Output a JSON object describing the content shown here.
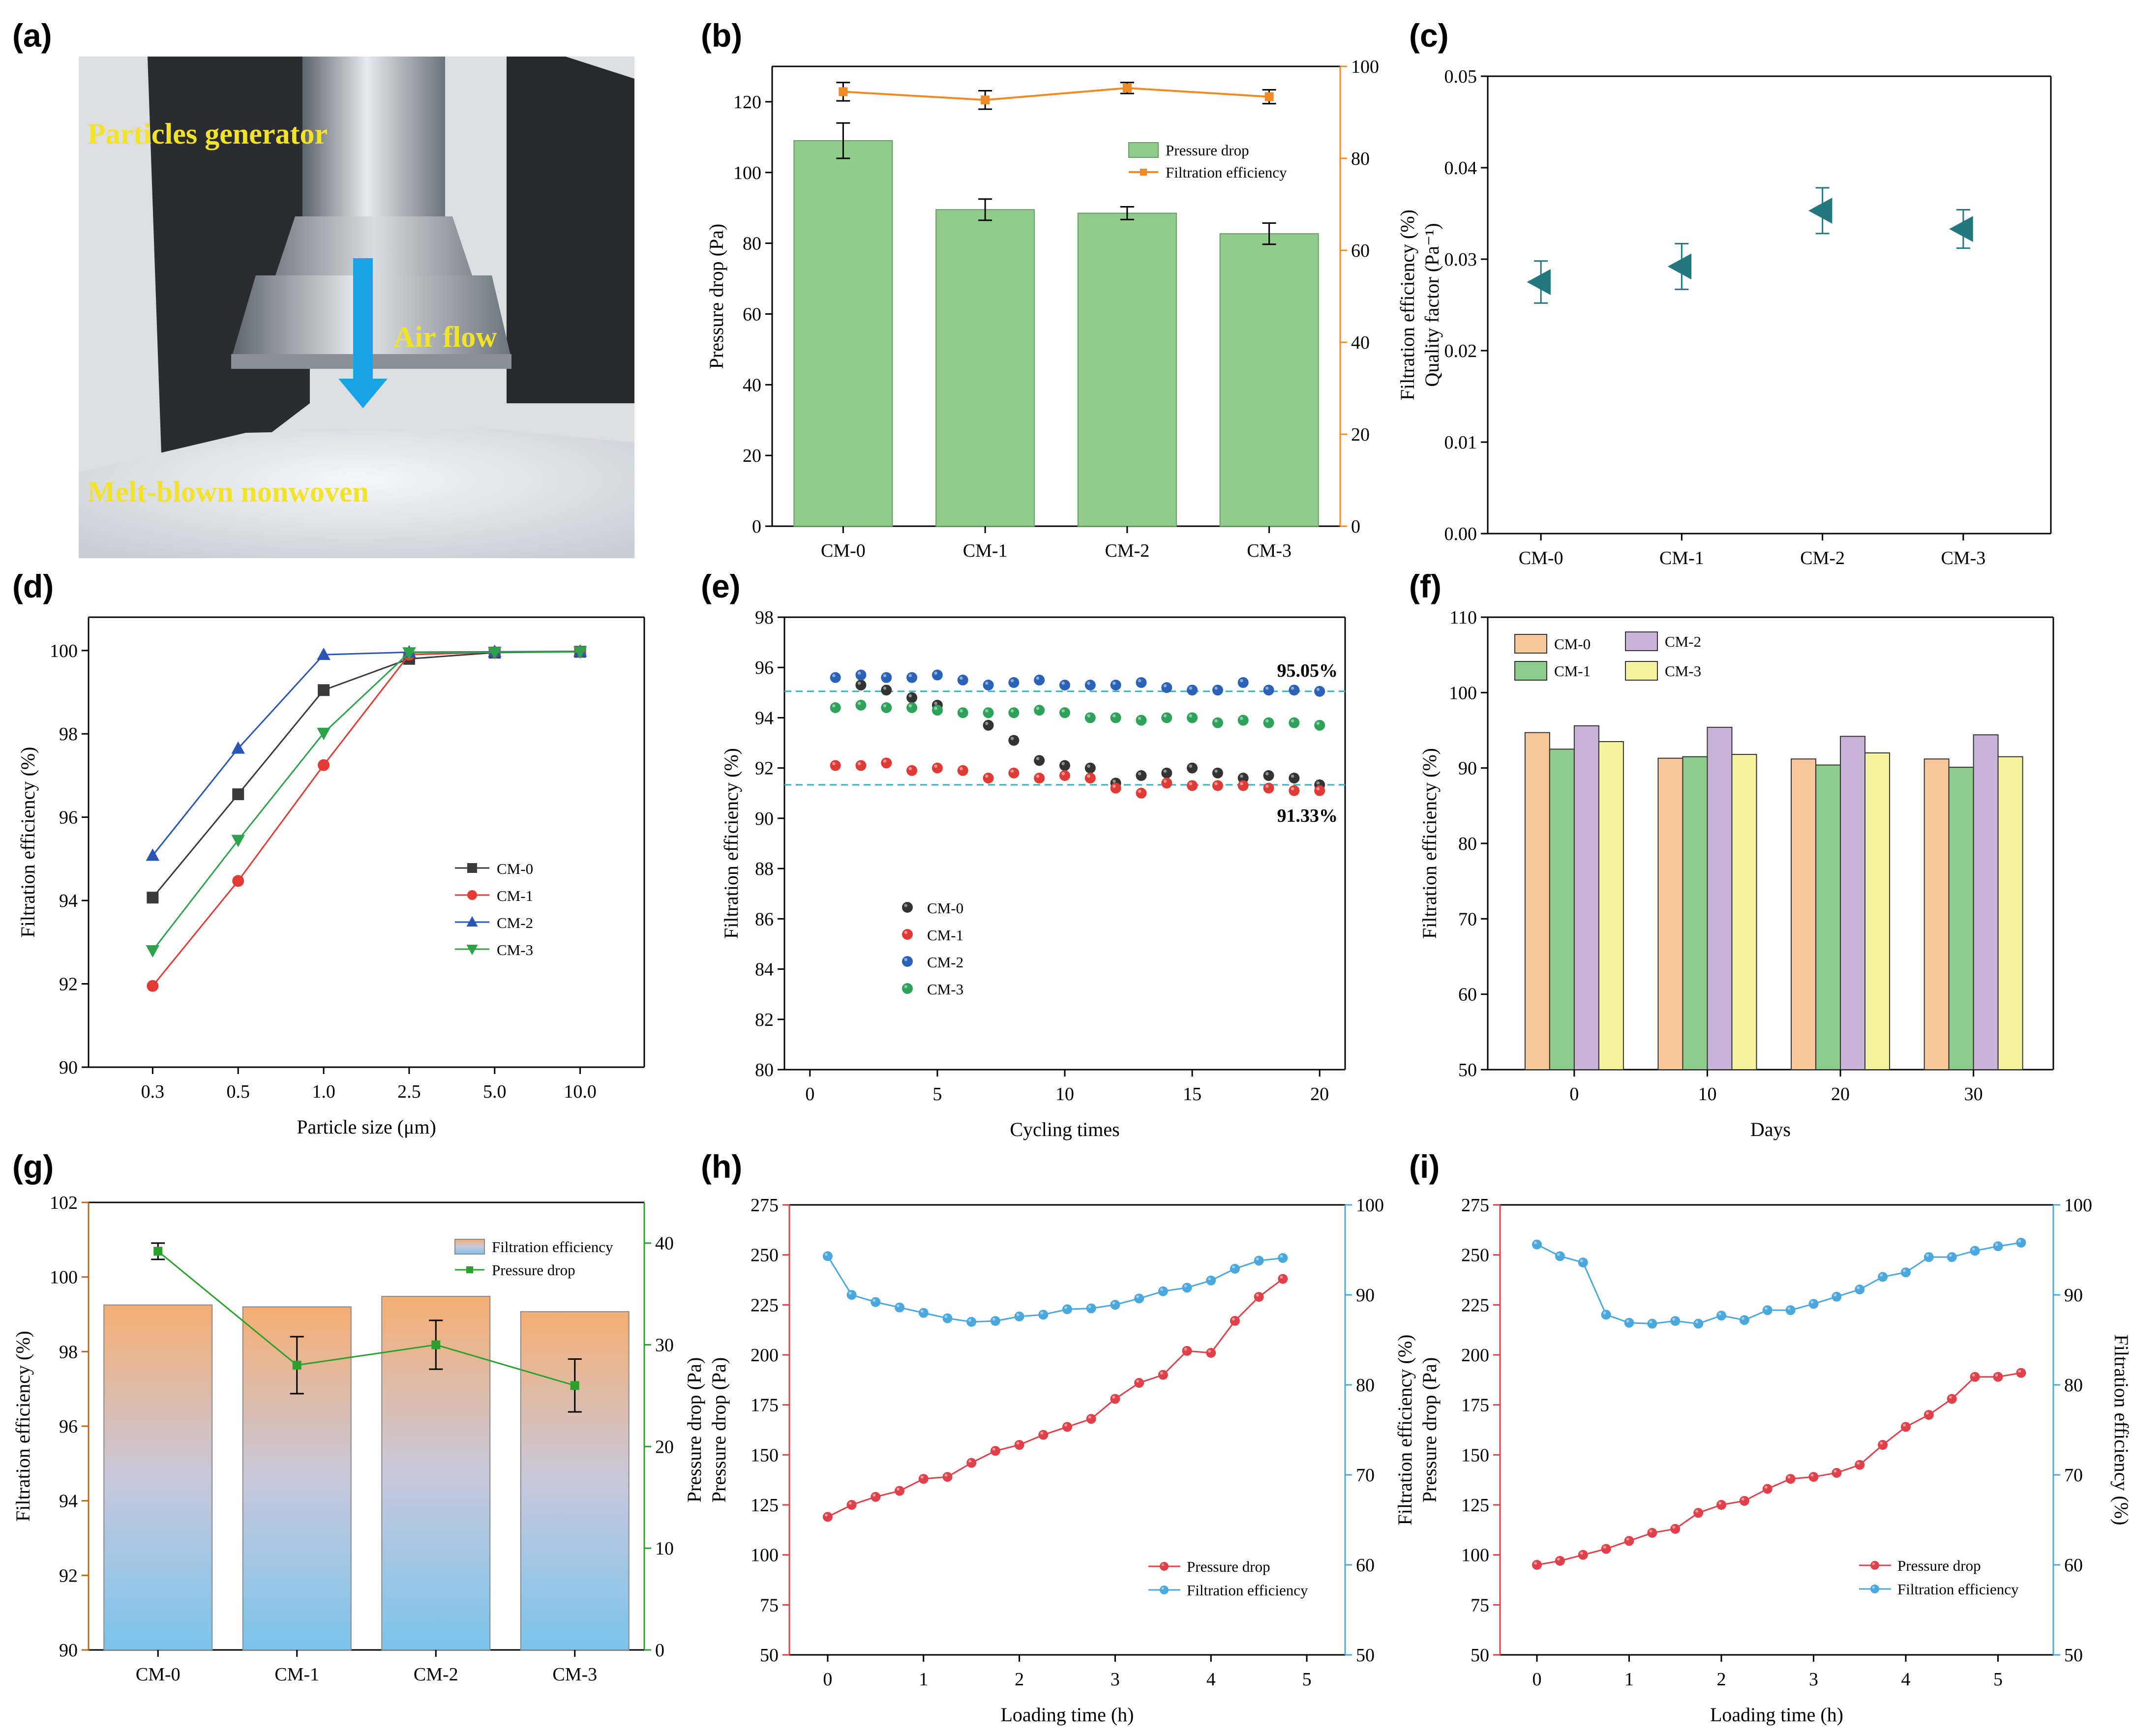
{
  "panel_labels": [
    "(a)",
    "(b)",
    "(c)",
    "(d)",
    "(e)",
    "(f)",
    "(g)",
    "(h)",
    "(i)"
  ],
  "photo": {
    "labels": [
      "Particles generator",
      "Air flow",
      "Melt-blown nonwoven"
    ],
    "colors": {
      "text": "#f2e22a",
      "arrow": "#1aa2e6"
    }
  },
  "chart_data": [
    {
      "id": "b",
      "type": "bar",
      "categories": [
        "CM-0",
        "CM-1",
        "CM-2",
        "CM-3"
      ],
      "ylabel": "Pressure drop (Pa)",
      "y2label": "",
      "ylim": [
        0,
        130
      ],
      "y2lim": [
        0,
        100
      ],
      "yticks": [
        0,
        20,
        40,
        60,
        80,
        100,
        120
      ],
      "y2ticks": [
        0,
        20,
        40,
        60,
        80,
        100
      ],
      "legend_position": "upper-right",
      "series": [
        {
          "name": "Pressure drop",
          "kind": "bar",
          "axis": "left",
          "color": "#90cc8c",
          "values": [
            109,
            89.5,
            88.5,
            82.7
          ],
          "errors": [
            5,
            3,
            1.8,
            3
          ]
        },
        {
          "name": "Filtration efficiency",
          "kind": "line",
          "axis": "right",
          "color": "#f08a24",
          "values": [
            94.5,
            92.7,
            95.3,
            93.4
          ],
          "errors": [
            2,
            2,
            1.2,
            1.5
          ]
        }
      ]
    },
    {
      "id": "c",
      "type": "scatter",
      "categories": [
        "CM-0",
        "CM-1",
        "CM-2",
        "CM-3"
      ],
      "ylabel": [
        "Filtration efficiency (%)",
        "Quality factor (Pa⁻¹)"
      ],
      "ylim": [
        0,
        0.05
      ],
      "yticks": [
        "0.00",
        "0.01",
        "0.02",
        "0.03",
        "0.04",
        "0.05"
      ],
      "series": [
        {
          "name": "",
          "color": "#22787e",
          "values": [
            0.0275,
            0.0292,
            0.0353,
            0.0333
          ],
          "errors": [
            0.0023,
            0.0025,
            0.0025,
            0.0021
          ]
        }
      ]
    },
    {
      "id": "d",
      "type": "line",
      "categories": [
        "0.3",
        "0.5",
        "1.0",
        "2.5",
        "5.0",
        "10.0"
      ],
      "xlabel": "Particle size (μm)",
      "ylabel": "Filtration efficiency (%)",
      "ylim": [
        90,
        100.8
      ],
      "yticks": [
        90,
        92,
        94,
        96,
        98,
        100
      ],
      "legend_position": "center-right",
      "series": [
        {
          "name": "CM-0",
          "marker": "square",
          "color": "#3a3a3a",
          "values": [
            94.07,
            96.55,
            99.05,
            99.8,
            99.95,
            99.97
          ]
        },
        {
          "name": "CM-1",
          "marker": "circle",
          "color": "#e43a36",
          "values": [
            91.95,
            94.47,
            97.25,
            99.9,
            99.96,
            99.97
          ]
        },
        {
          "name": "CM-2",
          "marker": "triangle-up",
          "color": "#2a55b5",
          "values": [
            95.08,
            97.65,
            99.9,
            99.96,
            99.97,
            99.98
          ]
        },
        {
          "name": "CM-3",
          "marker": "triangle-down",
          "color": "#2ca24a",
          "values": [
            92.8,
            95.45,
            98.02,
            99.95,
            99.96,
            99.97
          ]
        }
      ]
    },
    {
      "id": "e",
      "type": "scatter",
      "xlabel": "Cycling times",
      "ylabel": "Filtration efficiency (%)",
      "xlim": [
        -1,
        21
      ],
      "ylim": [
        80,
        98
      ],
      "xticks": [
        0,
        5,
        10,
        15,
        20
      ],
      "yticks": [
        80,
        82,
        84,
        86,
        88,
        90,
        92,
        94,
        96,
        98
      ],
      "x": [
        1,
        2,
        3,
        4,
        5,
        6,
        7,
        8,
        9,
        10,
        11,
        12,
        13,
        14,
        15,
        16,
        17,
        18,
        19,
        20
      ],
      "reference_lines": [
        {
          "value": 95.05,
          "label": "95.05%"
        },
        {
          "value": 91.33,
          "label": "91.33%"
        }
      ],
      "legend_position": "lower-left",
      "series": [
        {
          "name": "CM-0",
          "color": "#333333",
          "values": [
            null,
            95.3,
            95.1,
            94.8,
            94.5,
            null,
            93.7,
            93.1,
            92.3,
            92.1,
            92.0,
            91.4,
            91.7,
            91.8,
            92.0,
            91.8,
            91.6,
            91.7,
            91.6,
            91.33
          ]
        },
        {
          "name": "CM-1",
          "color": "#e03a36",
          "values": [
            92.1,
            92.1,
            92.2,
            91.9,
            92.0,
            91.9,
            91.6,
            91.8,
            91.6,
            91.7,
            91.6,
            91.2,
            91.0,
            91.4,
            91.3,
            91.3,
            91.3,
            91.2,
            91.1,
            91.1
          ]
        },
        {
          "name": "CM-2",
          "color": "#2a62b8",
          "values": [
            95.6,
            95.7,
            95.6,
            95.6,
            95.7,
            95.5,
            95.3,
            95.4,
            95.5,
            95.3,
            95.3,
            95.3,
            95.4,
            95.2,
            95.1,
            95.1,
            95.4,
            95.1,
            95.1,
            95.05
          ]
        },
        {
          "name": "CM-3",
          "color": "#2ea25a",
          "values": [
            94.4,
            94.5,
            94.4,
            94.4,
            94.3,
            94.2,
            94.2,
            94.2,
            94.3,
            94.2,
            94.0,
            94.0,
            93.9,
            94.0,
            94.0,
            93.8,
            93.9,
            93.8,
            93.8,
            93.7
          ]
        }
      ]
    },
    {
      "id": "f",
      "type": "bar",
      "categories": [
        "0",
        "10",
        "20",
        "30"
      ],
      "xlabel": "Days",
      "ylabel": "Filtration efficiency (%)",
      "ylim": [
        50,
        110
      ],
      "yticks": [
        50,
        60,
        70,
        80,
        90,
        100,
        110
      ],
      "legend_position": "top-left",
      "series": [
        {
          "name": "CM-0",
          "color": "#f8c79a",
          "values": [
            94.7,
            91.3,
            91.2,
            91.2
          ]
        },
        {
          "name": "CM-1",
          "color": "#8dcc8c",
          "values": [
            92.5,
            91.5,
            90.4,
            90.1
          ]
        },
        {
          "name": "CM-2",
          "color": "#c9b3d8",
          "values": [
            95.6,
            95.4,
            94.2,
            94.4
          ]
        },
        {
          "name": "CM-3",
          "color": "#f5f2a0",
          "values": [
            93.5,
            91.8,
            92.0,
            91.5
          ]
        }
      ]
    },
    {
      "id": "g",
      "type": "bar",
      "categories": [
        "CM-0",
        "CM-1",
        "CM-2",
        "CM-3"
      ],
      "ylabel": "Filtration efficiency (%)",
      "y2label": "",
      "ylim": [
        90,
        102
      ],
      "y2lim": [
        0,
        44
      ],
      "yticks": [
        90,
        92,
        94,
        96,
        98,
        100,
        102
      ],
      "y2ticks": [
        0,
        10,
        20,
        30,
        40
      ],
      "legend_position": "upper-right",
      "series": [
        {
          "name": "Filtration efficiency",
          "kind": "bar",
          "axis": "left",
          "gradient": [
            "#f5ae72",
            "#c8c8dc",
            "#7ac4ec"
          ],
          "values": [
            99.25,
            99.2,
            99.48,
            99.07
          ]
        },
        {
          "name": "Pressure drop",
          "kind": "line",
          "axis": "right",
          "color": "#2ca02c",
          "values": [
            39.2,
            28.0,
            30.0,
            26.0
          ],
          "errors": [
            0.8,
            2.8,
            2.4,
            2.6
          ]
        }
      ]
    },
    {
      "id": "h",
      "type": "line",
      "xlabel": "Loading time (h)",
      "ylabel": [
        "Pressure drop (Pa)",
        "Pressure drop (Pa)"
      ],
      "y2label": "",
      "xlim": [
        -0.4,
        5.4
      ],
      "ylim": [
        50,
        275
      ],
      "y2lim": [
        50,
        100
      ],
      "xticks": [
        0,
        1,
        2,
        3,
        4,
        5
      ],
      "yticks": [
        50,
        75,
        100,
        125,
        150,
        175,
        200,
        225,
        250,
        275
      ],
      "y2ticks": [
        50,
        60,
        70,
        80,
        90,
        100
      ],
      "legend_position": "lower-right",
      "series": [
        {
          "name": "Pressure drop",
          "axis": "left",
          "color": "#e0404a",
          "x": [
            0,
            0.25,
            0.5,
            0.75,
            1,
            1.25,
            1.5,
            1.75,
            2,
            2.25,
            2.5,
            2.75,
            3,
            3.25,
            3.5,
            3.75,
            4,
            4.25,
            4.5,
            4.75
          ],
          "values": [
            119,
            125,
            129,
            132,
            138,
            139,
            146,
            152,
            155,
            160,
            164,
            168,
            178,
            186,
            190,
            202,
            201,
            217,
            229,
            238
          ]
        },
        {
          "name": "Filtration efficiency",
          "axis": "right",
          "color": "#4aa8dc",
          "x": [
            0,
            0.25,
            0.5,
            0.75,
            1,
            1.25,
            1.5,
            1.75,
            2,
            2.25,
            2.5,
            2.75,
            3,
            3.25,
            3.5,
            3.75,
            4,
            4.25,
            4.5,
            4.75
          ],
          "values": [
            94.3,
            90.0,
            89.2,
            88.6,
            88.0,
            87.4,
            87.0,
            87.1,
            87.6,
            87.8,
            88.4,
            88.5,
            88.9,
            89.6,
            90.4,
            90.8,
            91.6,
            92.9,
            93.8,
            94.1
          ]
        }
      ]
    },
    {
      "id": "i",
      "type": "line",
      "xlabel": "Loading time (h)",
      "ylabel": [
        "Filtration efficiency (%)",
        "Pressure drop (Pa)"
      ],
      "y2label": "Filtration efficiency (%)",
      "xlim": [
        -0.4,
        5.6
      ],
      "ylim": [
        50,
        275
      ],
      "y2lim": [
        50,
        100
      ],
      "xticks": [
        0,
        1,
        2,
        3,
        4,
        5
      ],
      "yticks": [
        50,
        75,
        100,
        125,
        150,
        175,
        200,
        225,
        250,
        275
      ],
      "y2ticks": [
        50,
        60,
        70,
        80,
        90,
        100
      ],
      "legend_position": "lower-right",
      "series": [
        {
          "name": "Pressure drop",
          "axis": "left",
          "color": "#e0404a",
          "x": [
            0,
            0.25,
            0.5,
            0.75,
            1,
            1.25,
            1.5,
            1.75,
            2,
            2.25,
            2.5,
            2.75,
            3,
            3.25,
            3.5,
            3.75,
            4,
            4.25,
            4.5,
            4.75,
            5,
            5.25
          ],
          "values": [
            95,
            97,
            100,
            103,
            107,
            111,
            113,
            121,
            125,
            127,
            133,
            138,
            139,
            141,
            145,
            155,
            164,
            170,
            178,
            189,
            189,
            191
          ]
        },
        {
          "name": "Filtration efficiency",
          "axis": "right",
          "color": "#4aa8dc",
          "x": [
            0,
            0.25,
            0.5,
            0.75,
            1,
            1.25,
            1.5,
            1.75,
            2,
            2.25,
            2.5,
            2.75,
            3,
            3.25,
            3.5,
            3.75,
            4,
            4.25,
            4.5,
            4.75,
            5,
            5.25
          ],
          "values": [
            95.6,
            94.3,
            93.6,
            87.8,
            86.9,
            86.8,
            87.1,
            86.8,
            87.7,
            87.2,
            88.3,
            88.3,
            89.0,
            89.8,
            90.6,
            92.0,
            92.5,
            94.2,
            94.2,
            94.9,
            95.4,
            95.8
          ]
        }
      ]
    }
  ]
}
